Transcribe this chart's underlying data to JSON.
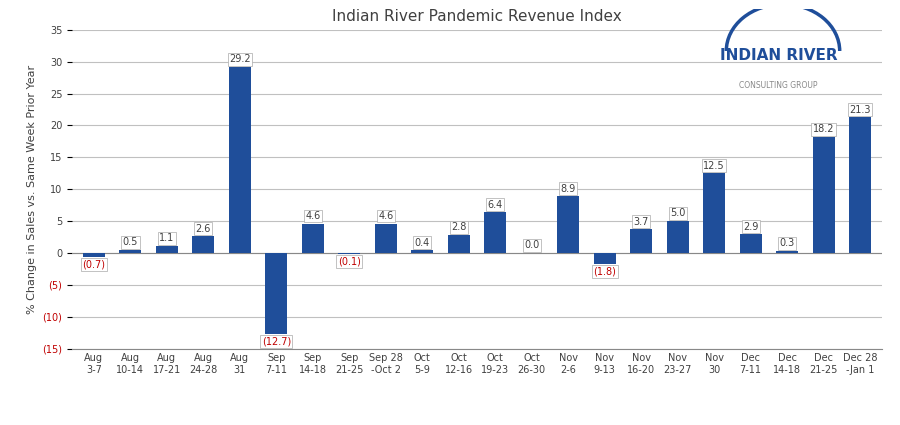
{
  "title": "Indian River Pandemic Revenue Index",
  "ylabel": "% Change in Sales vs. Same Week Prior Year",
  "categories": [
    "Aug\n3-7",
    "Aug\n10-14",
    "Aug\n17-21",
    "Aug\n24-28",
    "Aug\n31",
    "Sep\n7-11",
    "Sep\n14-18",
    "Sep\n21-25",
    "Sep 28\n-Oct 2",
    "Oct\n5-9",
    "Oct\n12-16",
    "Oct\n19-23",
    "Oct\n26-30",
    "Nov\n2-6",
    "Nov\n9-13",
    "Nov\n16-20",
    "Nov\n23-27",
    "Nov\n30",
    "Dec\n7-11",
    "Dec\n14-18",
    "Dec\n21-25",
    "Dec 28\n-Jan 1"
  ],
  "values": [
    -0.7,
    0.5,
    1.1,
    2.6,
    29.2,
    -12.7,
    4.6,
    -0.1,
    4.6,
    0.4,
    2.8,
    6.4,
    0.0,
    8.9,
    -1.8,
    3.7,
    5.0,
    12.5,
    2.9,
    0.3,
    18.2,
    21.3
  ],
  "bar_color": "#1F4E9A",
  "neg_label_color": "#C00000",
  "pos_label_color": "#404040",
  "ylim": [
    -15,
    35
  ],
  "yticks": [
    -15,
    -10,
    -5,
    0,
    5,
    10,
    15,
    20,
    25,
    30,
    35
  ],
  "background_color": "#FFFFFF",
  "grid_color": "#C0C0C0",
  "title_fontsize": 11,
  "axis_label_fontsize": 8,
  "tick_label_fontsize": 7,
  "value_label_fontsize": 7
}
